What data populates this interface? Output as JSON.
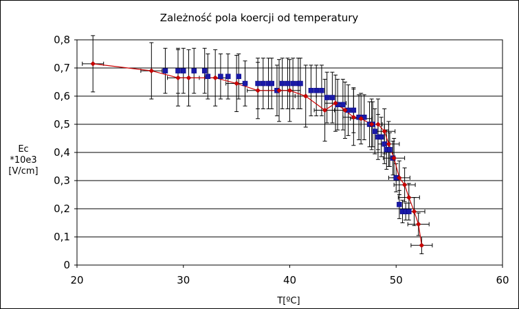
{
  "chart_data": {
    "type": "scatter",
    "title": "Zależność pola koercji od temperatury",
    "xlabel": "T[ºC]",
    "ylabel_lines": [
      "Ec",
      "*10e3",
      "[V/cm]"
    ],
    "xlim": [
      20,
      60
    ],
    "ylim": [
      0,
      0.8
    ],
    "x_ticks": [
      20,
      30,
      40,
      50,
      60
    ],
    "x_tick_labels": [
      "20",
      "30",
      "40",
      "50",
      "60"
    ],
    "y_ticks": [
      0,
      0.1,
      0.2,
      0.3,
      0.4,
      0.5,
      0.6,
      0.7,
      0.8
    ],
    "y_tick_labels": [
      "0",
      "0,1",
      "0,2",
      "0,3",
      "0,4",
      "0,5",
      "0,6",
      "0,7",
      "0,8"
    ],
    "grid": "horizontal",
    "legend": "none",
    "colors": {
      "series_1": "#1a1aa8",
      "series_2": "#cc0000",
      "error_bars": "#000000",
      "grid": "#000000"
    },
    "series": [
      {
        "marker": "square",
        "line": false,
        "x": [
          28.3,
          29.5,
          30.0,
          31.0,
          32.0,
          32.3,
          33.5,
          34.2,
          35.2,
          35.8,
          37.0,
          37.5,
          38.0,
          38.3,
          38.8,
          39.3,
          39.8,
          40.3,
          40.8,
          41.0,
          42.0,
          42.5,
          43.0,
          43.5,
          44.0,
          44.5,
          45.0,
          45.5,
          46.0,
          46.5,
          47.0,
          47.5,
          47.8,
          48.0,
          48.3,
          48.6,
          48.9,
          49.1,
          49.4,
          49.7,
          50.0,
          50.3,
          50.6,
          50.9,
          51.2
        ],
        "y": [
          0.69,
          0.69,
          0.69,
          0.69,
          0.69,
          0.67,
          0.67,
          0.67,
          0.67,
          0.645,
          0.645,
          0.645,
          0.645,
          0.645,
          0.62,
          0.645,
          0.645,
          0.645,
          0.645,
          0.645,
          0.62,
          0.62,
          0.62,
          0.595,
          0.595,
          0.57,
          0.57,
          0.55,
          0.55,
          0.525,
          0.525,
          0.5,
          0.5,
          0.475,
          0.455,
          0.455,
          0.43,
          0.41,
          0.41,
          0.38,
          0.31,
          0.215,
          0.19,
          0.19,
          0.19
        ],
        "y_err": [
          0.08,
          0.08,
          0.08,
          0.08,
          0.08,
          0.08,
          0.08,
          0.08,
          0.08,
          0.08,
          0.09,
          0.09,
          0.09,
          0.09,
          0.09,
          0.09,
          0.09,
          0.09,
          0.09,
          0.09,
          0.09,
          0.09,
          0.09,
          0.09,
          0.09,
          0.09,
          0.09,
          0.09,
          0.08,
          0.08,
          0.08,
          0.08,
          0.08,
          0.08,
          0.08,
          0.07,
          0.07,
          0.07,
          0.06,
          0.06,
          0.05,
          0.05,
          0.04,
          0.03,
          0.03
        ]
      },
      {
        "marker": "diamond",
        "line": true,
        "x": [
          21.5,
          27.0,
          29.5,
          30.5,
          33.0,
          35.0,
          37.0,
          39.0,
          40.0,
          41.5,
          43.3,
          44.3,
          45.2,
          46.0,
          46.7,
          47.7,
          48.3,
          48.9,
          49.3,
          49.8,
          50.3,
          50.8,
          51.2,
          51.7,
          52.1,
          52.4
        ],
        "y": [
          0.715,
          0.69,
          0.665,
          0.665,
          0.665,
          0.645,
          0.62,
          0.62,
          0.62,
          0.6,
          0.55,
          0.575,
          0.55,
          0.525,
          0.52,
          0.5,
          0.5,
          0.475,
          0.43,
          0.38,
          0.31,
          0.285,
          0.24,
          0.19,
          0.145,
          0.07
        ],
        "y_err": [
          0.1,
          0.1,
          0.1,
          0.1,
          0.1,
          0.1,
          0.1,
          0.11,
          0.11,
          0.11,
          0.11,
          0.1,
          0.1,
          0.1,
          0.09,
          0.09,
          0.09,
          0.08,
          0.08,
          0.07,
          0.06,
          0.06,
          0.05,
          0.05,
          0.04,
          0.03
        ],
        "x_err": [
          1.0,
          1.0,
          1.0,
          1.0,
          1.0,
          1.0,
          1.0,
          1.0,
          1.0,
          1.0,
          1.0,
          1.0,
          1.0,
          1.0,
          1.0,
          1.0,
          1.0,
          1.0,
          1.0,
          1.0,
          1.0,
          1.0,
          1.0,
          1.0,
          1.0,
          1.0
        ]
      }
    ]
  }
}
